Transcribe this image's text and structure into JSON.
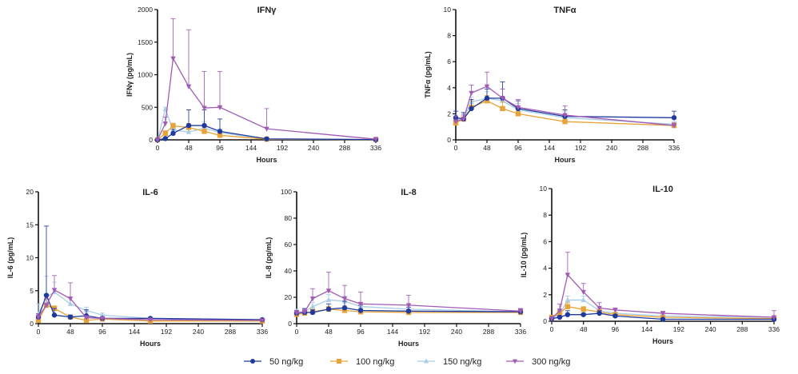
{
  "legend": [
    {
      "name": "50 ng/kg",
      "color": "#1f3a9e",
      "marker": "circle"
    },
    {
      "name": "100 ng/kg",
      "color": "#e8a33a",
      "marker": "square"
    },
    {
      "name": "150 ng/kg",
      "color": "#a9cde6",
      "marker": "triangle-up"
    },
    {
      "name": "300 ng/kg",
      "color": "#a25bb5",
      "marker": "triangle-down"
    }
  ],
  "chart_data": [
    {
      "type": "line",
      "title": "IFNγ",
      "xlabel": "Hours",
      "ylabel": "IFNγ (pg/mL)",
      "xlim": [
        0,
        336
      ],
      "ylim": [
        0,
        2000
      ],
      "yticks": [
        0,
        500,
        1000,
        1500,
        2000
      ],
      "xticks": [
        0,
        48,
        96,
        144,
        192,
        240,
        288,
        336
      ],
      "x": [
        0,
        12,
        24,
        48,
        72,
        96,
        168,
        336
      ],
      "series": [
        {
          "name": "50 ng/kg",
          "values": [
            0,
            20,
            100,
            220,
            220,
            130,
            15,
            5
          ],
          "sd": [
            0,
            10,
            60,
            240,
            240,
            190,
            10,
            0
          ]
        },
        {
          "name": "100 ng/kg",
          "values": [
            0,
            100,
            215,
            190,
            130,
            70,
            10,
            5
          ],
          "sd": [
            0,
            40,
            40,
            60,
            60,
            40,
            5,
            0
          ]
        },
        {
          "name": "150 ng/kg",
          "values": [
            0,
            470,
            150,
            120,
            180,
            110,
            10,
            5
          ],
          "sd": [
            0,
            30,
            60,
            60,
            100,
            60,
            5,
            0
          ]
        },
        {
          "name": "300 ng/kg",
          "values": [
            0,
            250,
            1250,
            820,
            490,
            500,
            170,
            10
          ],
          "sd": [
            0,
            100,
            610,
            870,
            560,
            550,
            310,
            0
          ]
        }
      ]
    },
    {
      "type": "line",
      "title": "TNFα",
      "xlabel": "Hours",
      "ylabel": "TNFα (pg/mL)",
      "xlim": [
        0,
        336
      ],
      "ylim": [
        0,
        10
      ],
      "yticks": [
        0,
        2,
        4,
        6,
        8,
        10
      ],
      "xticks": [
        0,
        48,
        96,
        144,
        192,
        240,
        288,
        336
      ],
      "x": [
        0,
        12,
        24,
        48,
        72,
        96,
        168,
        336
      ],
      "series": [
        {
          "name": "50 ng/kg",
          "values": [
            1.7,
            1.6,
            2.4,
            3.2,
            3.2,
            2.4,
            1.8,
            1.7
          ],
          "sd": [
            0.5,
            0.5,
            0.7,
            0.7,
            1.25,
            0.6,
            0.5,
            0.5
          ]
        },
        {
          "name": "100 ng/kg",
          "values": [
            1.3,
            1.6,
            2.5,
            3.0,
            2.4,
            2.0,
            1.4,
            1.1
          ],
          "sd": [
            0.4,
            0.3,
            0.5,
            0.4,
            0.5,
            0.3,
            0.2,
            0.2
          ]
        },
        {
          "name": "150 ng/kg",
          "values": [
            1.5,
            1.7,
            2.9,
            3.2,
            3.0,
            2.3,
            1.7,
            1.2
          ],
          "sd": [
            0.4,
            0.3,
            0.4,
            0.5,
            0.9,
            0.5,
            0.5,
            0.2
          ]
        },
        {
          "name": "300 ng/kg",
          "values": [
            1.4,
            1.6,
            3.6,
            4.1,
            3.2,
            2.5,
            1.9,
            1.1
          ],
          "sd": [
            0.4,
            0.3,
            0.6,
            1.1,
            0.7,
            0.6,
            0.7,
            0.2
          ]
        }
      ]
    },
    {
      "type": "line",
      "title": "IL-6",
      "xlabel": "Hours",
      "ylabel": "IL-6 (pg/mL)",
      "xlim": [
        0,
        336
      ],
      "ylim": [
        0,
        20
      ],
      "yticks": [
        0,
        5,
        10,
        15,
        20
      ],
      "xticks": [
        0,
        48,
        96,
        144,
        192,
        240,
        288,
        336
      ],
      "x": [
        0,
        12,
        24,
        48,
        72,
        96,
        168,
        336
      ],
      "series": [
        {
          "name": "50 ng/kg",
          "values": [
            1.0,
            4.3,
            1.3,
            1.0,
            1.2,
            0.8,
            0.8,
            0.6
          ],
          "sd": [
            0.5,
            10.5,
            1.0,
            0.3,
            0.9,
            0.2,
            0.1,
            0.1
          ]
        },
        {
          "name": "100 ng/kg",
          "values": [
            0.5,
            2.8,
            2.3,
            1.0,
            0.5,
            0.7,
            0.4,
            0.4
          ],
          "sd": [
            0.3,
            1.0,
            0.4,
            0.3,
            0.2,
            0.2,
            0.1,
            0.1
          ]
        },
        {
          "name": "150 ng/kg",
          "values": [
            1.5,
            4.0,
            4.8,
            3.0,
            2.0,
            1.3,
            0.8,
            0.6
          ],
          "sd": [
            1.5,
            3.2,
            1.5,
            1.0,
            0.5,
            0.3,
            0.1,
            0.1
          ]
        },
        {
          "name": "300 ng/kg",
          "values": [
            1.0,
            2.8,
            5.1,
            3.8,
            0.9,
            0.8,
            0.6,
            0.5
          ],
          "sd": [
            0.5,
            1.0,
            2.2,
            2.4,
            0.3,
            0.2,
            0.1,
            0.1
          ]
        }
      ]
    },
    {
      "type": "line",
      "title": "IL-8",
      "xlabel": "Hours",
      "ylabel": "IL-8 (pg/mL)",
      "xlim": [
        0,
        336
      ],
      "ylim": [
        0,
        100
      ],
      "yticks": [
        0,
        20,
        40,
        60,
        80,
        100
      ],
      "xticks": [
        0,
        48,
        96,
        144,
        192,
        240,
        288,
        336
      ],
      "x": [
        0,
        12,
        24,
        48,
        72,
        96,
        168,
        336
      ],
      "series": [
        {
          "name": "50 ng/kg",
          "values": [
            8,
            8.5,
            8.5,
            11,
            12,
            10,
            9.5,
            9
          ],
          "sd": [
            2,
            3,
            2,
            4,
            5,
            4,
            3,
            2
          ]
        },
        {
          "name": "100 ng/kg",
          "values": [
            7,
            8,
            9,
            11,
            10,
            9,
            8.5,
            8.5
          ],
          "sd": [
            2,
            2,
            2,
            2,
            2,
            2,
            2,
            2
          ]
        },
        {
          "name": "150 ng/kg",
          "values": [
            9,
            9,
            13,
            18,
            17,
            13,
            11,
            9
          ],
          "sd": [
            2,
            2,
            3,
            4,
            4,
            3,
            3,
            2
          ]
        },
        {
          "name": "300 ng/kg",
          "values": [
            8,
            9,
            19,
            25,
            19,
            15,
            14,
            9.5
          ],
          "sd": [
            2,
            2,
            7.5,
            14,
            10,
            9,
            7.5,
            2
          ]
        }
      ]
    },
    {
      "type": "line",
      "title": "IL-10",
      "xlabel": "Hours",
      "ylabel": "IL-10 (pg/mL)",
      "xlim": [
        0,
        336
      ],
      "ylim": [
        0,
        10
      ],
      "yticks": [
        0,
        2,
        4,
        6,
        8,
        10
      ],
      "xticks": [
        0,
        48,
        96,
        144,
        192,
        240,
        288,
        336
      ],
      "x": [
        0,
        12,
        24,
        48,
        72,
        96,
        168,
        336
      ],
      "series": [
        {
          "name": "50 ng/kg",
          "values": [
            0.2,
            0.3,
            0.5,
            0.5,
            0.6,
            0.4,
            0.15,
            0.15
          ],
          "sd": [
            0.1,
            0.1,
            0.3,
            0.1,
            0.2,
            0.1,
            0.05,
            0.05
          ]
        },
        {
          "name": "100 ng/kg",
          "values": [
            0.3,
            0.6,
            1.1,
            0.9,
            0.7,
            0.5,
            0.3,
            0.2
          ],
          "sd": [
            0.1,
            0.2,
            0.3,
            0.2,
            0.2,
            0.1,
            0.1,
            0.1
          ]
        },
        {
          "name": "150 ng/kg",
          "values": [
            0.2,
            0.5,
            1.6,
            1.6,
            0.8,
            0.6,
            0.4,
            0.3
          ],
          "sd": [
            0.1,
            0.2,
            0.3,
            0.3,
            0.2,
            0.1,
            0.1,
            0.1
          ]
        },
        {
          "name": "300 ng/kg",
          "values": [
            0.2,
            0.8,
            3.5,
            2.2,
            1.0,
            0.85,
            0.6,
            0.3
          ],
          "sd": [
            0.1,
            0.5,
            1.7,
            0.65,
            0.4,
            0.15,
            0.15,
            0.5
          ]
        }
      ]
    }
  ]
}
